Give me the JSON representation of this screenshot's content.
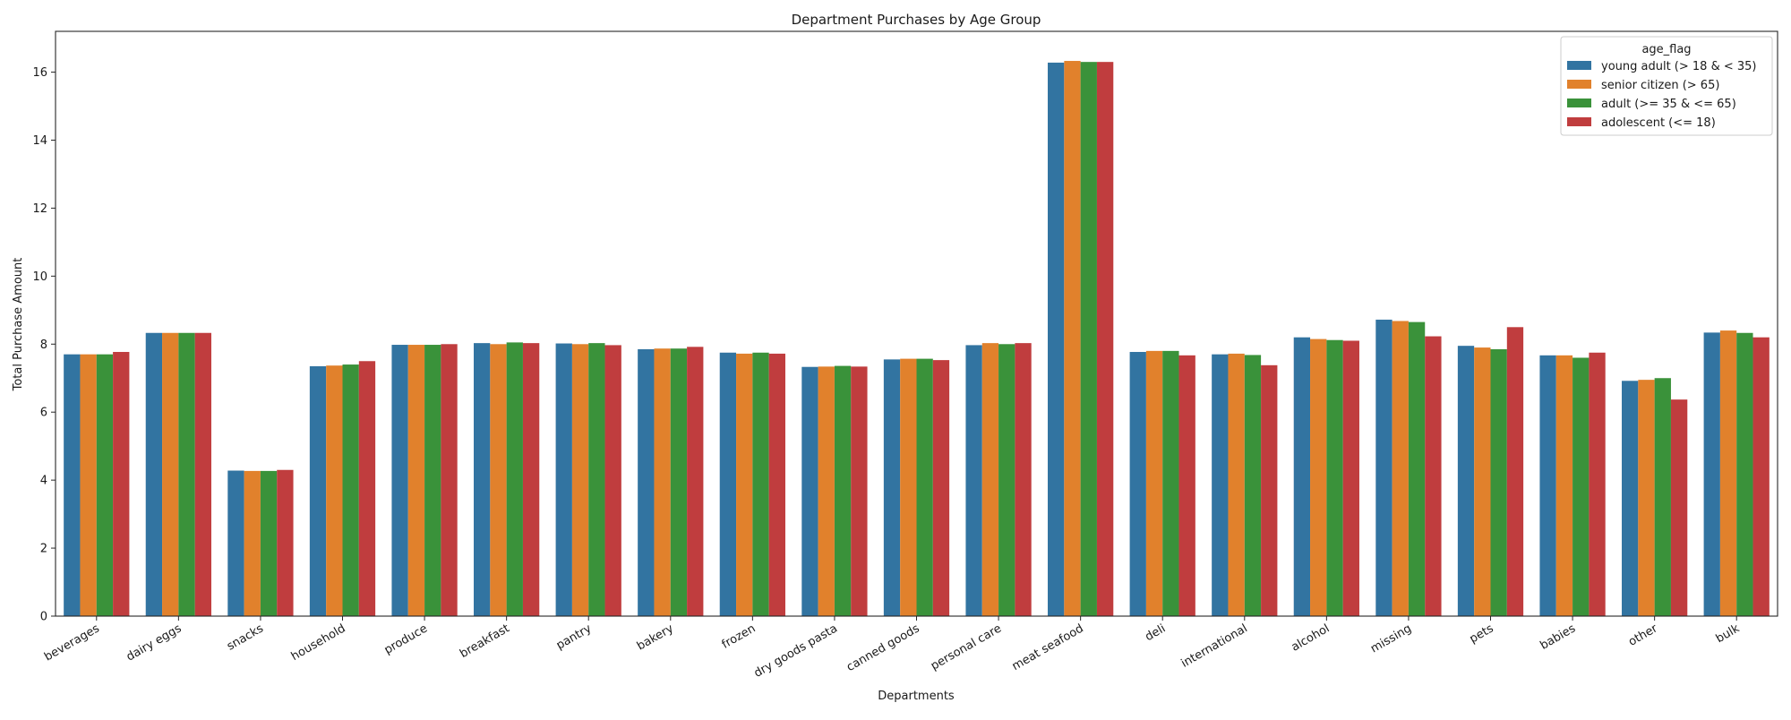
{
  "chart_data": {
    "type": "bar",
    "title": "Department Purchases by Age Group",
    "xlabel": "Departments",
    "ylabel": "Total Purchase Amount",
    "ylim": [
      0,
      17.2
    ],
    "yticks": [
      0,
      2,
      4,
      6,
      8,
      10,
      12,
      14,
      16
    ],
    "grid": false,
    "legend": {
      "title": "age_flag",
      "placement": "top-right"
    },
    "categories": [
      "beverages",
      "dairy eggs",
      "snacks",
      "household",
      "produce",
      "breakfast",
      "pantry",
      "bakery",
      "frozen",
      "dry goods pasta",
      "canned goods",
      "personal care",
      "meat seafood",
      "deli",
      "international",
      "alcohol",
      "missing",
      "pets",
      "babies",
      "other",
      "bulk"
    ],
    "series": [
      {
        "name": "young adult (> 18 & < 35)",
        "color": "#3274a1",
        "values": [
          7.7,
          8.33,
          4.28,
          7.35,
          7.98,
          8.03,
          8.02,
          7.85,
          7.75,
          7.33,
          7.55,
          7.97,
          16.28,
          7.77,
          7.7,
          8.2,
          8.72,
          7.95,
          7.67,
          6.92,
          8.34
        ]
      },
      {
        "name": "senior citizen (> 65)",
        "color": "#e1812c",
        "values": [
          7.7,
          8.33,
          4.27,
          7.37,
          7.98,
          8.0,
          8.0,
          7.87,
          7.72,
          7.34,
          7.57,
          8.03,
          16.33,
          7.8,
          7.72,
          8.15,
          8.68,
          7.9,
          7.67,
          6.95,
          8.4
        ]
      },
      {
        "name": "adult (>= 35 & <= 65)",
        "color": "#3a923a",
        "values": [
          7.7,
          8.33,
          4.27,
          7.4,
          7.98,
          8.05,
          8.03,
          7.87,
          7.75,
          7.36,
          7.57,
          8.0,
          16.3,
          7.8,
          7.68,
          8.12,
          8.65,
          7.85,
          7.6,
          7.0,
          8.33
        ]
      },
      {
        "name": "adolescent (<= 18)",
        "color": "#c03d3e",
        "values": [
          7.77,
          8.33,
          4.3,
          7.5,
          8.0,
          8.03,
          7.97,
          7.92,
          7.72,
          7.34,
          7.53,
          8.03,
          16.3,
          7.67,
          7.38,
          8.1,
          8.23,
          8.5,
          7.75,
          6.37,
          8.2
        ]
      }
    ]
  }
}
